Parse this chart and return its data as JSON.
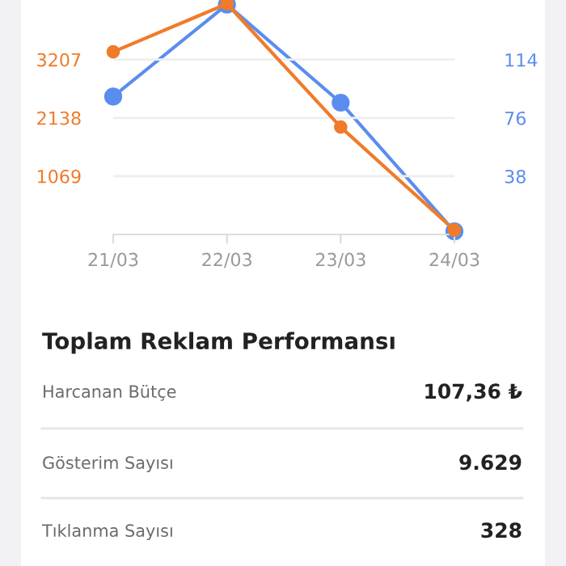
{
  "chart_data": [
    {
      "type": "line",
      "categories": [
        "21/03",
        "22/03",
        "23/03",
        "24/03"
      ],
      "series": [
        {
          "color": "#f07b2a",
          "values": [
            3350,
            4230,
            1970,
            80
          ]
        },
        {
          "color": "#5b8def",
          "values": [
            90,
            150,
            86,
            2
          ],
          "axis": "y2"
        }
      ],
      "ylim": [
        0,
        4300
      ],
      "yticks": [
        1069,
        2138,
        3207
      ],
      "y2lim": [
        0,
        153
      ],
      "y2ticks": [
        38,
        76,
        114
      ],
      "grid": "y",
      "marker": "circle",
      "line_style": "solid"
    },
    {
      "type": "other",
      "title": "Toplam Reklam Performansı",
      "categories": [
        "Harcanan Bütçe",
        "Gösterim Sayısı",
        "Tıklanma Sayısı"
      ],
      "value_labels": [
        "107,36 ₺",
        "9.629",
        "328"
      ]
    }
  ]
}
